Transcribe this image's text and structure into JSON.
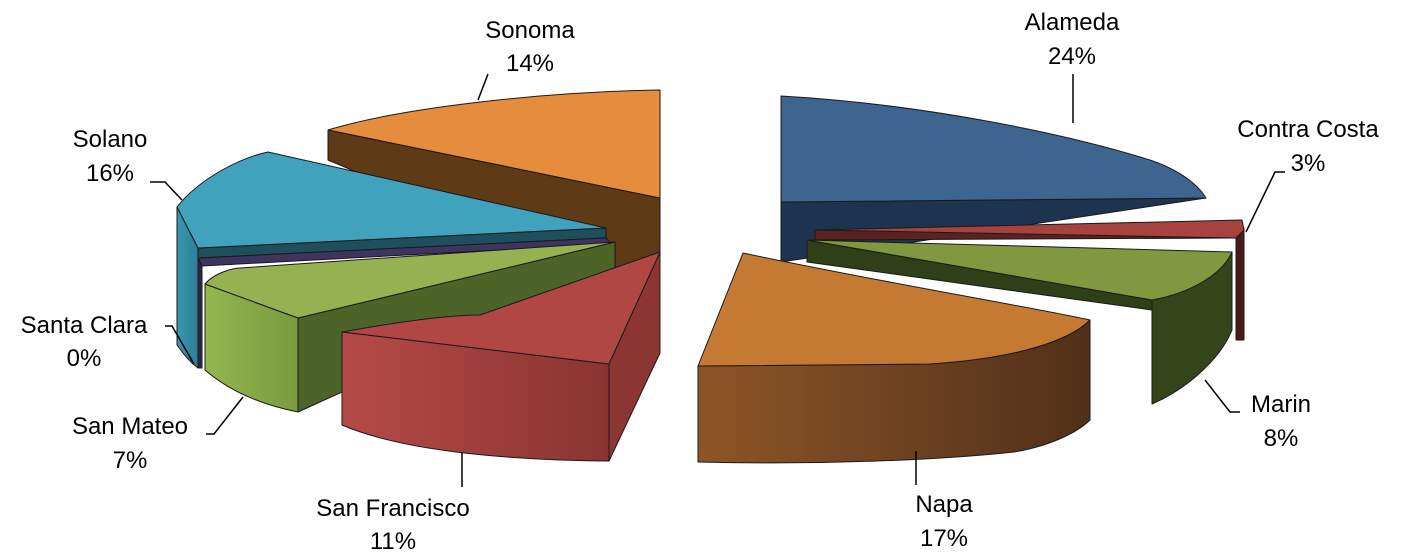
{
  "chart_data": {
    "type": "pie",
    "title": "",
    "style": "3d-exploded",
    "label_format": "category name over percentage",
    "categories": [
      "Alameda",
      "Contra Costa",
      "Marin",
      "Napa",
      "San Francisco",
      "San Mateo",
      "Santa Clara",
      "Solano",
      "Sonoma"
    ],
    "percent_labels": [
      "24%",
      "3%",
      "8%",
      "17%",
      "11%",
      "7%",
      "0%",
      "16%",
      "14%"
    ],
    "values": [
      24,
      3,
      8,
      17,
      11,
      7,
      0,
      16,
      14
    ],
    "colors": [
      "#3d6590",
      "#a8423f",
      "#80993f",
      "#c57a34",
      "#b04745",
      "#95b152",
      "#4a3e6e",
      "#41a2bd",
      "#e58c3d"
    ]
  }
}
